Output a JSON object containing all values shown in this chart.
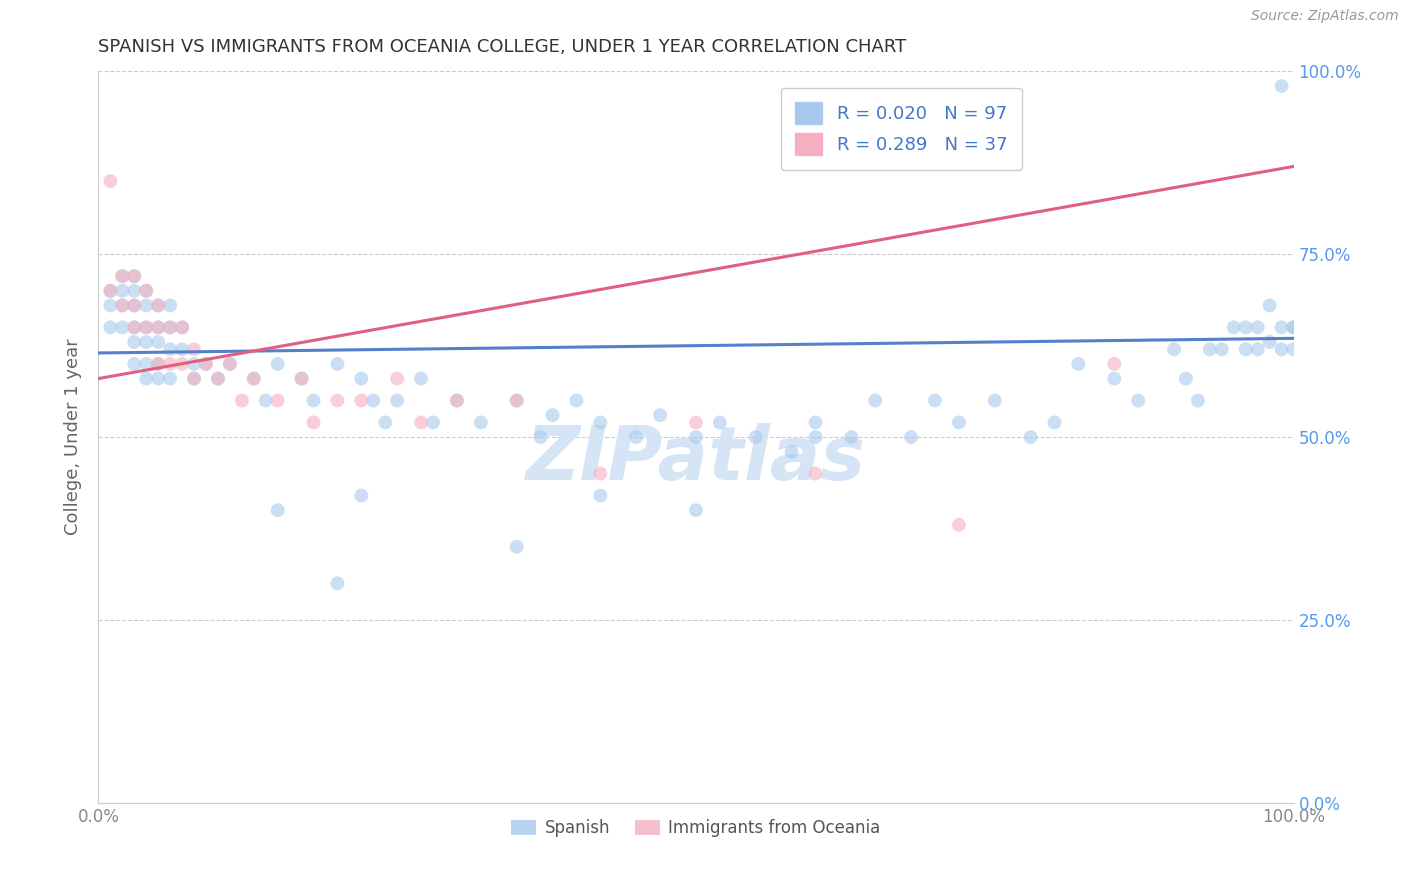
{
  "title": "SPANISH VS IMMIGRANTS FROM OCEANIA COLLEGE, UNDER 1 YEAR CORRELATION CHART",
  "source_text": "Source: ZipAtlas.com",
  "ylabel": "College, Under 1 year",
  "xlim": [
    0.0,
    1.0
  ],
  "ylim": [
    0.0,
    1.0
  ],
  "ytick_positions": [
    0.0,
    0.25,
    0.5,
    0.75,
    1.0
  ],
  "ytick_labels": [
    "0.0%",
    "25.0%",
    "50.0%",
    "75.0%",
    "100.0%"
  ],
  "xtick_positions": [
    0.0,
    1.0
  ],
  "xtick_labels": [
    "0.0%",
    "100.0%"
  ],
  "legend_r_blue": "R = 0.020",
  "legend_n_blue": "N = 97",
  "legend_r_pink": "R = 0.289",
  "legend_n_pink": "N = 37",
  "blue_color": "#A8C8EE",
  "pink_color": "#F4B0C0",
  "blue_line_color": "#5580CC",
  "pink_line_color": "#E06080",
  "watermark_color": "#D5E5F5",
  "background_color": "#FFFFFF",
  "grid_color": "#CCCCCC",
  "title_color": "#333333",
  "axis_label_color": "#666666",
  "ytick_color": "#5599EE",
  "xtick_color": "#888888",
  "blue_scatter_x": [
    0.01,
    0.01,
    0.01,
    0.02,
    0.02,
    0.02,
    0.02,
    0.03,
    0.03,
    0.03,
    0.03,
    0.03,
    0.03,
    0.04,
    0.04,
    0.04,
    0.04,
    0.04,
    0.04,
    0.05,
    0.05,
    0.05,
    0.05,
    0.05,
    0.06,
    0.06,
    0.06,
    0.06,
    0.07,
    0.07,
    0.08,
    0.08,
    0.09,
    0.1,
    0.11,
    0.13,
    0.14,
    0.15,
    0.17,
    0.18,
    0.2,
    0.22,
    0.23,
    0.24,
    0.25,
    0.27,
    0.28,
    0.3,
    0.32,
    0.35,
    0.37,
    0.38,
    0.4,
    0.42,
    0.45,
    0.47,
    0.5,
    0.52,
    0.55,
    0.58,
    0.6,
    0.63,
    0.65,
    0.68,
    0.7,
    0.72,
    0.75,
    0.78,
    0.8,
    0.82,
    0.85,
    0.87,
    0.9,
    0.91,
    0.92,
    0.93,
    0.94,
    0.95,
    0.96,
    0.96,
    0.97,
    0.97,
    0.98,
    0.98,
    0.99,
    0.99,
    0.99,
    1.0,
    1.0,
    1.0,
    0.15,
    0.2,
    0.22,
    0.35,
    0.42,
    0.5,
    0.6
  ],
  "blue_scatter_y": [
    0.7,
    0.68,
    0.65,
    0.72,
    0.7,
    0.68,
    0.65,
    0.72,
    0.7,
    0.68,
    0.65,
    0.63,
    0.6,
    0.7,
    0.68,
    0.65,
    0.63,
    0.6,
    0.58,
    0.68,
    0.65,
    0.63,
    0.6,
    0.58,
    0.68,
    0.65,
    0.62,
    0.58,
    0.65,
    0.62,
    0.6,
    0.58,
    0.6,
    0.58,
    0.6,
    0.58,
    0.55,
    0.6,
    0.58,
    0.55,
    0.6,
    0.58,
    0.55,
    0.52,
    0.55,
    0.58,
    0.52,
    0.55,
    0.52,
    0.55,
    0.5,
    0.53,
    0.55,
    0.52,
    0.5,
    0.53,
    0.5,
    0.52,
    0.5,
    0.48,
    0.52,
    0.5,
    0.55,
    0.5,
    0.55,
    0.52,
    0.55,
    0.5,
    0.52,
    0.6,
    0.58,
    0.55,
    0.62,
    0.58,
    0.55,
    0.62,
    0.62,
    0.65,
    0.62,
    0.65,
    0.62,
    0.65,
    0.63,
    0.68,
    0.65,
    0.62,
    0.98,
    0.65,
    0.62,
    0.65,
    0.4,
    0.3,
    0.42,
    0.35,
    0.42,
    0.4,
    0.5
  ],
  "pink_scatter_x": [
    0.01,
    0.01,
    0.02,
    0.02,
    0.03,
    0.03,
    0.03,
    0.04,
    0.04,
    0.05,
    0.05,
    0.05,
    0.06,
    0.06,
    0.07,
    0.07,
    0.08,
    0.08,
    0.09,
    0.1,
    0.11,
    0.12,
    0.13,
    0.15,
    0.17,
    0.18,
    0.2,
    0.22,
    0.25,
    0.27,
    0.3,
    0.35,
    0.42,
    0.5,
    0.6,
    0.72,
    0.85
  ],
  "pink_scatter_y": [
    0.85,
    0.7,
    0.72,
    0.68,
    0.72,
    0.68,
    0.65,
    0.7,
    0.65,
    0.68,
    0.65,
    0.6,
    0.65,
    0.6,
    0.65,
    0.6,
    0.62,
    0.58,
    0.6,
    0.58,
    0.6,
    0.55,
    0.58,
    0.55,
    0.58,
    0.52,
    0.55,
    0.55,
    0.58,
    0.52,
    0.55,
    0.55,
    0.45,
    0.52,
    0.45,
    0.38,
    0.6
  ],
  "blue_line_x": [
    0.0,
    1.0
  ],
  "blue_line_y": [
    0.615,
    0.635
  ],
  "pink_line_x": [
    0.0,
    1.0
  ],
  "pink_line_y": [
    0.58,
    0.87
  ],
  "marker_size": 100,
  "marker_alpha": 0.6,
  "line_width": 2.2
}
